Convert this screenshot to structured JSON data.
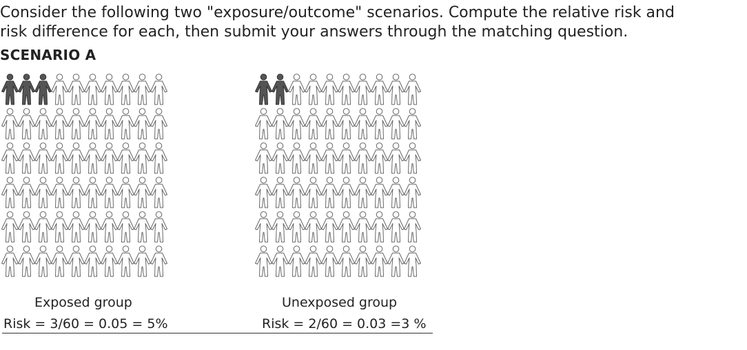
{
  "instructions": {
    "line1": "Consider the following two \"exposure/outcome\" scenarios. Compute the relative risk and",
    "line2": "risk difference for each, then submit your answers through the matching question."
  },
  "scenario": {
    "title": "SCENARIO A",
    "groups": [
      {
        "key": "exposed",
        "label": "Exposed group",
        "risk_text": "Risk = 3/60 = 0.05 = 5%",
        "total": 60,
        "cases": 3
      },
      {
        "key": "unexposed",
        "label": "Unexposed group",
        "risk_text": "Risk = 2/60 = 0.03 =3 %",
        "total": 60,
        "cases": 2
      }
    ]
  },
  "icons": {
    "person": "person-icon",
    "case_fill": "#555555",
    "noncase_fill": "#ffffff",
    "stroke": "#666666"
  }
}
